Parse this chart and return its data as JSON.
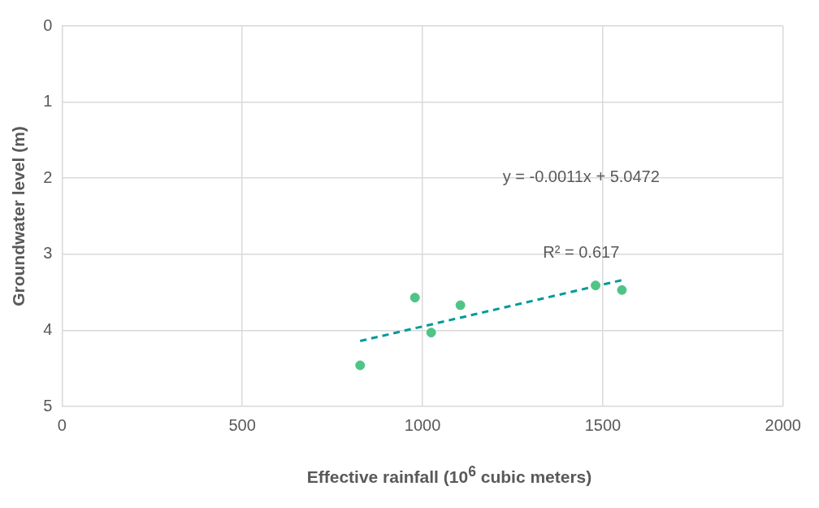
{
  "chart_data": {
    "type": "scatter",
    "xlabel": "Effective rainfall (10$^{6}$ cubic meters)",
    "ylabel": "Groundwater level (m)",
    "xlim": [
      0,
      2000
    ],
    "xticks": [
      0,
      500,
      1000,
      1500,
      2000
    ],
    "ylim": [
      5,
      0
    ],
    "yticks": [
      0,
      1,
      2,
      3,
      4,
      5
    ],
    "grid": true,
    "legend": false,
    "marker": "circle",
    "series": [
      {
        "color": "#4fc487",
        "x": [
          827,
          979,
          1024,
          1105,
          1480,
          1553
        ],
        "values": [
          4.46,
          3.57,
          4.03,
          3.67,
          3.41,
          3.47
        ]
      },
      {
        "type": "line",
        "line_style": "dashed",
        "marker": "none",
        "color": "#009a9a",
        "x": [
          827,
          1553
        ],
        "values": [
          4.14,
          3.34
        ]
      }
    ],
    "annotations": [
      "y = -0.0011x + 5.0472",
      "R² = 0.617"
    ]
  }
}
